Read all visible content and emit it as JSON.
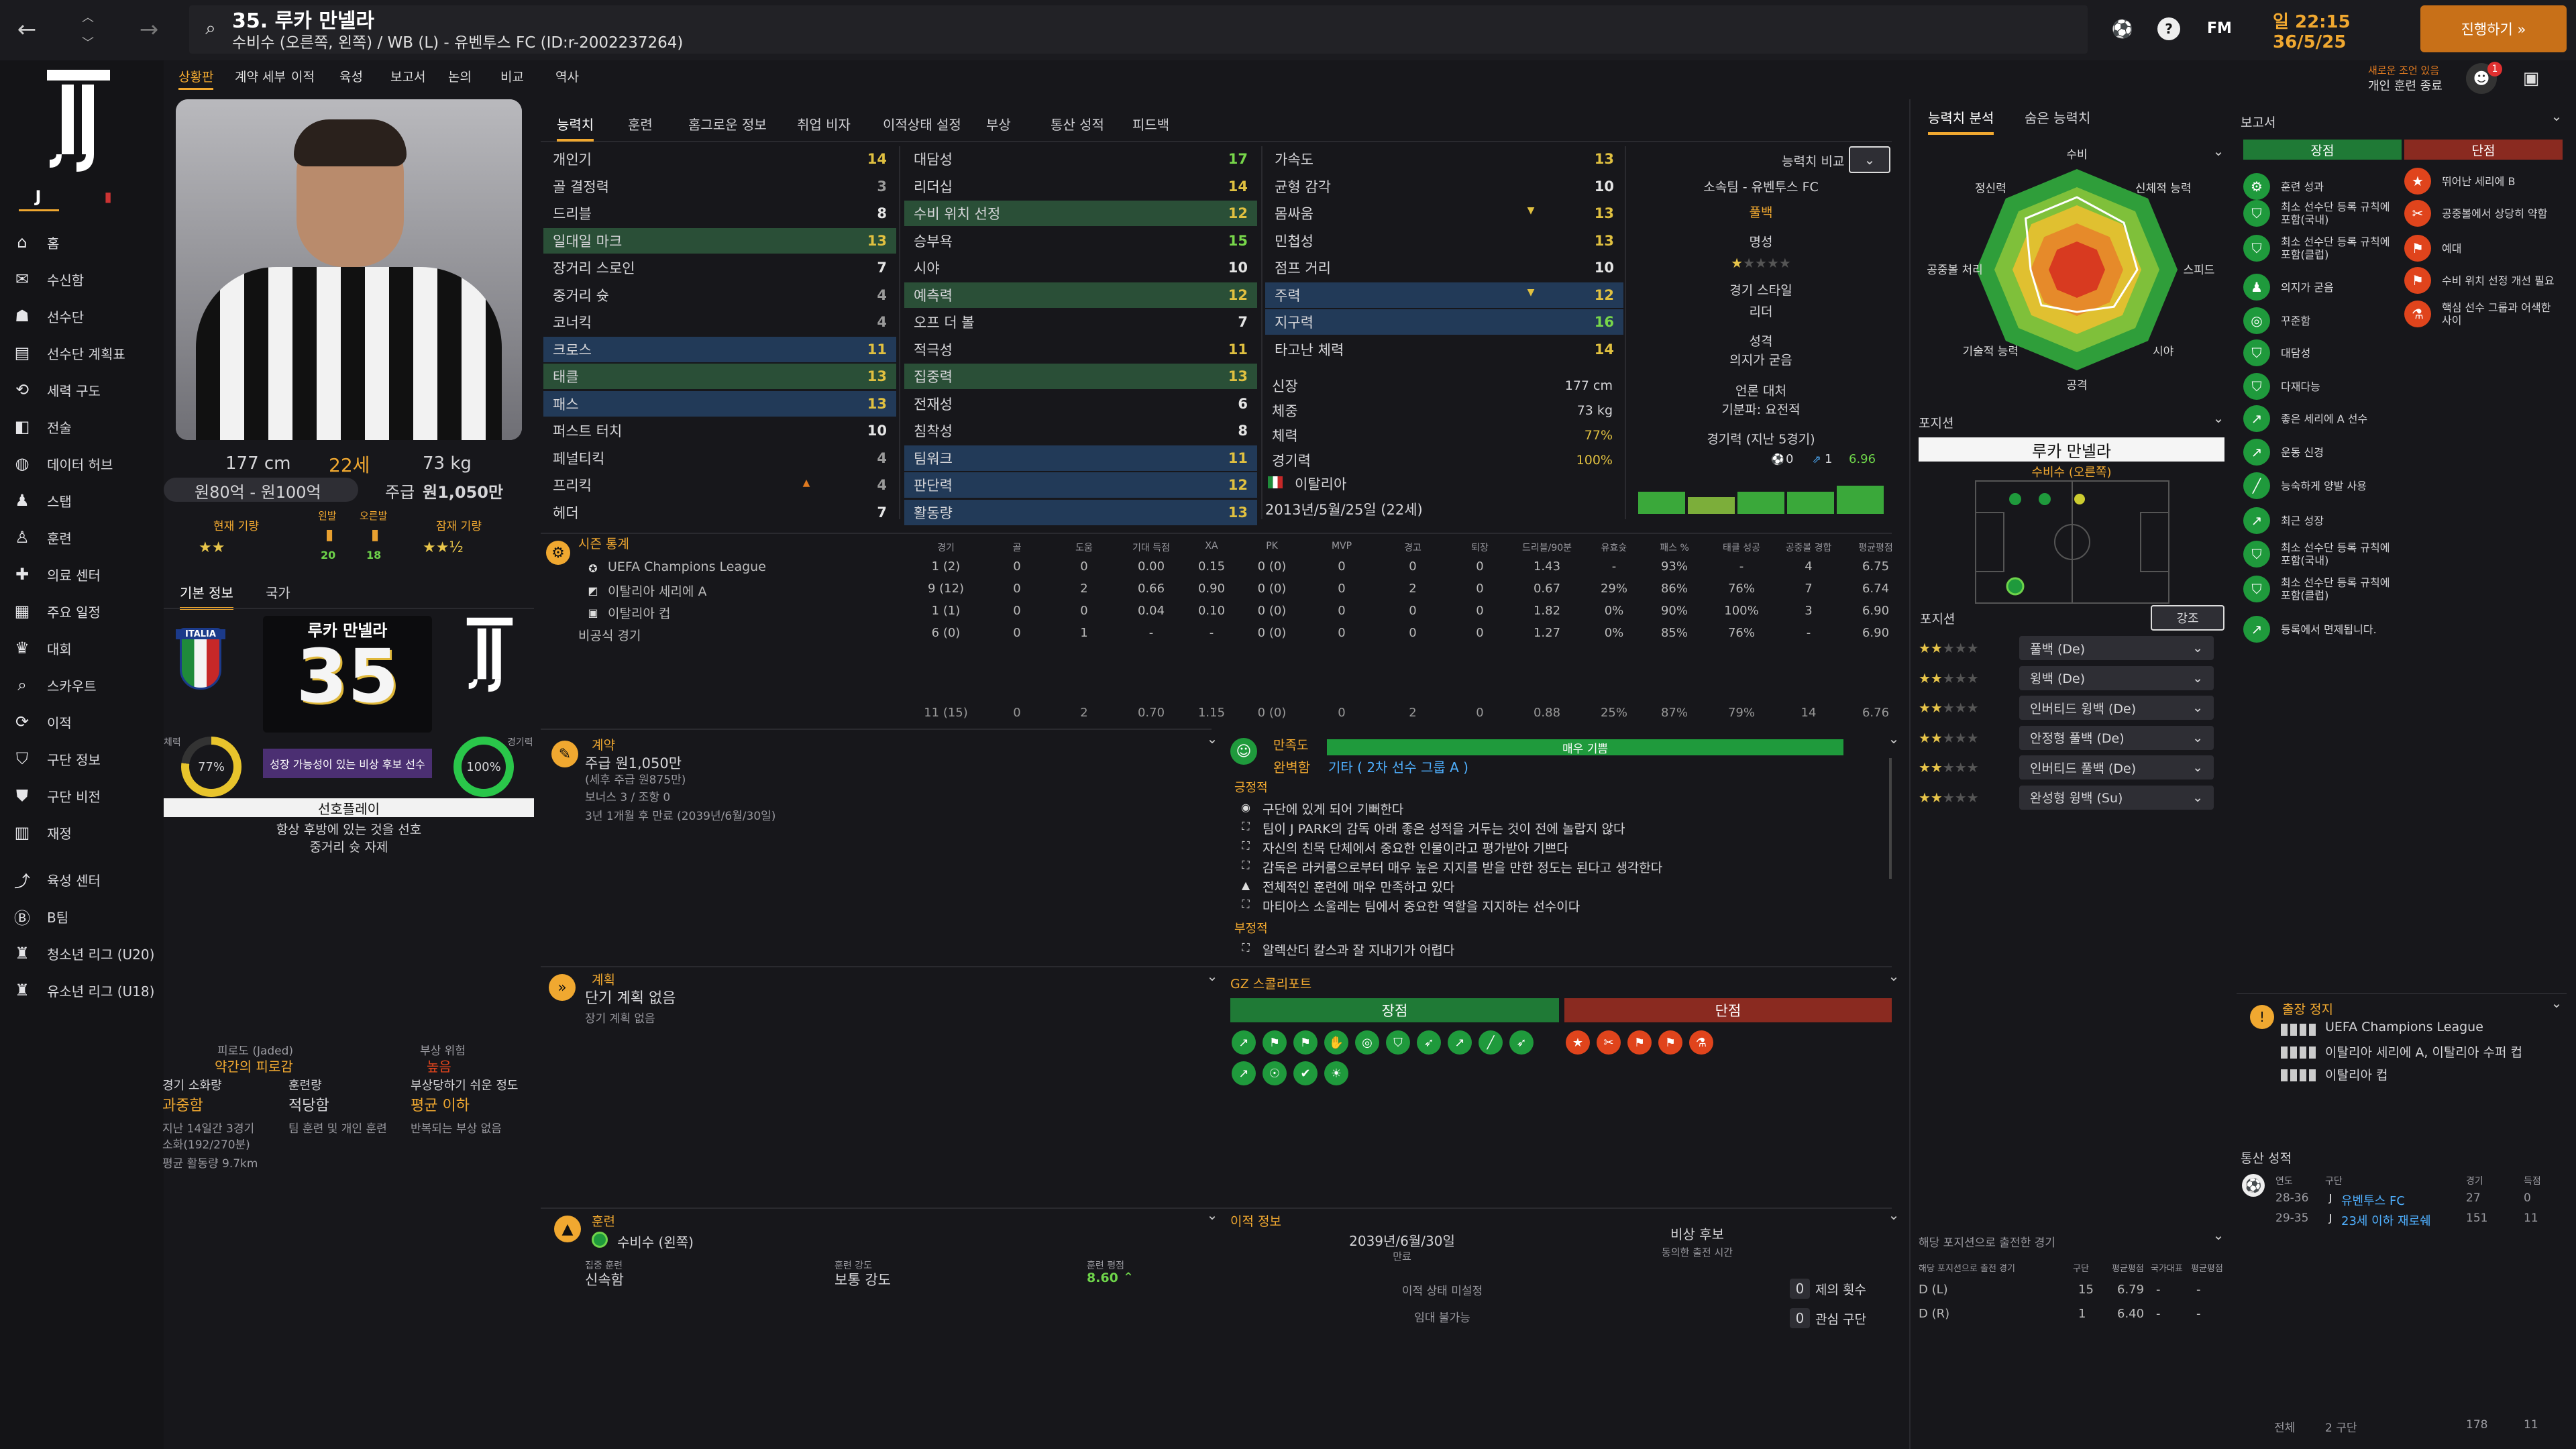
{
  "topbar": {
    "player_no_name": "35. 루카 만넬라",
    "subtitle": "수비수 (오른쪽, 왼쪽) / WB (L) - 유벤투스 FC (ID:r-2002237264)",
    "time_day": "일 22:15",
    "date": "36/5/25",
    "continue_label": "진행하기 »",
    "notice_line1": "새로운 조언 있음",
    "notice_line2": "개인 훈련 종료",
    "fm_label": "FM",
    "badge_count": "1"
  },
  "subnav": [
    "상황판",
    "계약 세부",
    "이적",
    "육성",
    "보고서",
    "논의",
    "비교",
    "역사"
  ],
  "nav": {
    "items": [
      "홈",
      "수신함",
      "선수단",
      "선수단 계획표",
      "세력 구도",
      "전술",
      "데이터 허브",
      "스탭",
      "훈련",
      "의료 센터",
      "주요 일정",
      "대회",
      "스카우트",
      "이적",
      "구단 정보",
      "구단 비전",
      "재정",
      "육성 센터",
      "B팀",
      "청소년 리그 (U20)",
      "유소년 리그 (U18)"
    ]
  },
  "profile": {
    "height": "177 cm",
    "age": "22세",
    "weight": "73 kg",
    "value": "원80억 - 원100억",
    "wage_label": "주급",
    "wage": "원1,050만",
    "current_ability": "현재 기량",
    "potential_ability": "잠재 기량",
    "left_foot": "왼발",
    "right_foot": "오른발",
    "left_foot_val": "20",
    "right_foot_val": "18",
    "ca_stars": "★★",
    "pa_stars": "★★½"
  },
  "card": {
    "tab1": "기본 정보",
    "tab2": "국가",
    "nation": "ITALIA",
    "name": "루카 만넬라",
    "number": "35",
    "tagline": "성장 가능성이 있는 비상 후보 선수",
    "fitness_label": "체력",
    "fitness_pct": "77%",
    "sharpness_label": "경기력",
    "sharpness_pct": "100%",
    "pref_title": "선호플레이",
    "pref1": "항상 후방에 있는 것을 선호",
    "pref2": "중거리 슛 자제"
  },
  "fatigue": {
    "title": "피로도 (Jaded)",
    "status": "약간의 피로감",
    "risk_title": "부상 위험",
    "risk_val": "높음",
    "c1_label": "경기 소화량",
    "c1_val": "과중함",
    "c2_label": "훈련량",
    "c2_val": "적당함",
    "c3_label": "부상당하기 쉬운 정도",
    "c3_val": "평균 이하",
    "d1": "지난 14일간 3경기",
    "d2": "소화(192/270분)",
    "d3": "평균 활동량 9.7km",
    "d4": "팀 훈련 및 개인 훈련",
    "d5": "반복되는 부상 없음"
  },
  "main_tabs": [
    "능력치",
    "훈련",
    "홈그로운 정보",
    "취업 비자",
    "이적상태 설정",
    "부상",
    "통산 성적",
    "피드백"
  ],
  "attrs_col1": [
    {
      "n": "개인기",
      "v": "14",
      "c": "y",
      "h": ""
    },
    {
      "n": "골 결정력",
      "v": "3",
      "c": "gr",
      "h": ""
    },
    {
      "n": "드리블",
      "v": "8",
      "c": "w",
      "h": ""
    },
    {
      "n": "일대일 마크",
      "v": "13",
      "c": "y",
      "h": "hl"
    },
    {
      "n": "장거리 스로인",
      "v": "7",
      "c": "w",
      "h": ""
    },
    {
      "n": "중거리 슛",
      "v": "4",
      "c": "gr",
      "h": ""
    },
    {
      "n": "코너킥",
      "v": "4",
      "c": "gr",
      "h": ""
    },
    {
      "n": "크로스",
      "v": "11",
      "c": "y",
      "h": "bl"
    },
    {
      "n": "태클",
      "v": "13",
      "c": "y",
      "h": "hl"
    },
    {
      "n": "패스",
      "v": "13",
      "c": "y",
      "h": "bl"
    },
    {
      "n": "퍼스트 터치",
      "v": "10",
      "c": "w",
      "h": ""
    },
    {
      "n": "페널티킥",
      "v": "4",
      "c": "gr",
      "h": ""
    },
    {
      "n": "프리킥",
      "v": "4",
      "c": "gr",
      "h": ""
    },
    {
      "n": "헤더",
      "v": "7",
      "c": "w",
      "h": ""
    }
  ],
  "attrs_col2": [
    {
      "n": "대담성",
      "v": "17",
      "c": "g",
      "h": ""
    },
    {
      "n": "리더십",
      "v": "14",
      "c": "y",
      "h": ""
    },
    {
      "n": "수비 위치 선정",
      "v": "12",
      "c": "y",
      "h": "hl"
    },
    {
      "n": "승부욕",
      "v": "15",
      "c": "g",
      "h": ""
    },
    {
      "n": "시야",
      "v": "10",
      "c": "w",
      "h": ""
    },
    {
      "n": "예측력",
      "v": "12",
      "c": "y",
      "h": "hl"
    },
    {
      "n": "오프 더 볼",
      "v": "7",
      "c": "w",
      "h": ""
    },
    {
      "n": "적극성",
      "v": "11",
      "c": "y",
      "h": ""
    },
    {
      "n": "집중력",
      "v": "13",
      "c": "y",
      "h": "hl"
    },
    {
      "n": "전재성",
      "v": "6",
      "c": "w",
      "h": ""
    },
    {
      "n": "침착성",
      "v": "8",
      "c": "w",
      "h": ""
    },
    {
      "n": "팀워크",
      "v": "11",
      "c": "y",
      "h": "bl"
    },
    {
      "n": "판단력",
      "v": "12",
      "c": "y",
      "h": "bl"
    },
    {
      "n": "활동량",
      "v": "13",
      "c": "y",
      "h": "bl"
    }
  ],
  "attrs_col3": [
    {
      "n": "가속도",
      "v": "13",
      "c": "y",
      "h": ""
    },
    {
      "n": "균형 감각",
      "v": "10",
      "c": "w",
      "h": ""
    },
    {
      "n": "몸싸움",
      "v": "13",
      "c": "y",
      "h": ""
    },
    {
      "n": "민첩성",
      "v": "13",
      "c": "y",
      "h": ""
    },
    {
      "n": "점프 거리",
      "v": "10",
      "c": "w",
      "h": ""
    },
    {
      "n": "주력",
      "v": "12",
      "c": "y",
      "h": "bl"
    },
    {
      "n": "지구력",
      "v": "16",
      "c": "g",
      "h": "bl"
    },
    {
      "n": "타고난 체력",
      "v": "14",
      "c": "y",
      "h": ""
    }
  ],
  "physical": [
    {
      "n": "신장",
      "v": "177 cm"
    },
    {
      "n": "체중",
      "v": "73 kg"
    },
    {
      "n": "체력",
      "v": "77%"
    },
    {
      "n": "경기력",
      "v": "100%"
    }
  ],
  "nation_line": "이탈리아",
  "birth_line": "2013년/5월/25일 (22세)",
  "compare": {
    "label": "능력치 비교",
    "club_line": "소속팀 - 유벤투스 FC",
    "role": "풀백",
    "fame": "명성",
    "play_style": "경기 스타일",
    "leader": "리더",
    "personality": "성격",
    "personality_val": "의지가 굳음",
    "media": "언론 대처",
    "media_val": "기분파: 요전적",
    "form": "경기력 (지난 5경기)",
    "goals": "0",
    "assists": "1",
    "rating": "6.96",
    "form_values": [
      6.9,
      6.8,
      6.9,
      6.9,
      7.0
    ]
  },
  "season": {
    "title": "시즌 통계",
    "headers": [
      "경기",
      "골",
      "도움",
      "기대 득점",
      "XA",
      "PK",
      "MVP",
      "경고",
      "퇴장",
      "드리블/90분",
      "유효슛",
      "패스 %",
      "태클 성공",
      "공중볼 경합",
      "평균평점"
    ],
    "rows": [
      {
        "comp": "UEFA Champions League",
        "vals": [
          "1 (2)",
          "0",
          "0",
          "0.00",
          "0.15",
          "0 (0)",
          "0",
          "0",
          "0",
          "1.43",
          "-",
          "93%",
          "-",
          "4",
          "6.75"
        ]
      },
      {
        "comp": "이탈리아 세리에 A",
        "vals": [
          "9 (12)",
          "0",
          "2",
          "0.66",
          "0.90",
          "0 (0)",
          "0",
          "2",
          "0",
          "0.67",
          "29%",
          "86%",
          "76%",
          "7",
          "6.74"
        ]
      },
      {
        "comp": "이탈리아 컵",
        "vals": [
          "1 (1)",
          "0",
          "0",
          "0.04",
          "0.10",
          "0 (0)",
          "0",
          "0",
          "0",
          "1.82",
          "0%",
          "90%",
          "100%",
          "3",
          "6.90"
        ]
      },
      {
        "comp": "비공식 경기",
        "vals": [
          "6 (0)",
          "0",
          "1",
          "-",
          "-",
          "0 (0)",
          "0",
          "0",
          "0",
          "1.27",
          "0%",
          "85%",
          "76%",
          "-",
          "6.90"
        ]
      }
    ],
    "total": [
      "11 (15)",
      "0",
      "2",
      "0.70",
      "1.15",
      "0 (0)",
      "0",
      "2",
      "0",
      "0.88",
      "25%",
      "87%",
      "79%",
      "14",
      "6.76"
    ]
  },
  "contract": {
    "title": "계약",
    "wage": "주급 원1,050만",
    "note": "(세후 주급 원875만)",
    "bonus": "보너스 3 / 조항 0",
    "expiry": "3년 1개월 후 만료 (2039년/6월/30일)"
  },
  "satisfaction": {
    "title": "만족도",
    "level": "매우 기쁨",
    "role": "완벽함",
    "group": "기타 ( 2차 선수 그룹 A )",
    "pos_title": "긍정적",
    "pos": [
      "구단에 있게 되어 기뻐한다",
      "팀이 J PARK의 감독 아래 좋은 성적을 거두는 것이 전에 놀랍지 않다",
      "자신의 친목 단체에서 중요한 인물이라고 평가받아 기쁘다",
      "감독은 라커룸으로부터 매우 높은 지지를 받을 만한 정도는 된다고 생각한다",
      "전체적인 훈련에 매우 만족하고 있다",
      "마티아스 소울레는 팀에서 중요한 역할을 지지하는 선수이다"
    ],
    "neg_title": "부정적",
    "neg": [
      "알렉산더 칼스과 잘 지내기가 어렵다"
    ]
  },
  "plan": {
    "title": "계획",
    "short": "단기 계획 없음",
    "long": "장기 계획 없음"
  },
  "scout": {
    "title": "GZ 스콜리포트",
    "strength": "장점",
    "weakness": "단점"
  },
  "training": {
    "title": "훈련",
    "focus": "수비수 (왼쪽)",
    "i1_label": "집중 훈련",
    "i1_val": "신속함",
    "i2_label": "훈련 강도",
    "i2_val": "보통 강도",
    "i3_label": "훈련 평점",
    "i3_val": "8.60"
  },
  "transfer": {
    "title": "이적 정보",
    "date": "2039년/6월/30일",
    "date_label": "만료",
    "status": "비상 후보",
    "status_label": "동의한 출전 시간",
    "line1": "이적 상태 미설정",
    "line2": "임대 불가능",
    "offers": "제의 횟수",
    "offers_val": "0",
    "interest": "관심 구단",
    "interest_val": "0"
  },
  "right_tabs": [
    "능력치 분석",
    "숨은 능력치"
  ],
  "radar": {
    "labels": [
      "수비",
      "신체적 능력",
      "스피드",
      "시야",
      "공격",
      "기술적 능력",
      "공중볼 처리",
      "정신력"
    ],
    "values": [
      0.72,
      0.66,
      0.6,
      0.52,
      0.42,
      0.5,
      0.46,
      0.72
    ]
  },
  "position": {
    "title": "포지션",
    "name": "루카 만넬라",
    "role": "수비수 (오른쪽)",
    "section": "포지션",
    "highlight": "강조",
    "roles": [
      {
        "stars": "★★",
        "label": "풀백 (De)"
      },
      {
        "stars": "★★",
        "label": "윙백 (De)"
      },
      {
        "stars": "★★",
        "label": "인버티드 윙백 (De)"
      },
      {
        "stars": "★★",
        "label": "안정형 풀백 (De)"
      },
      {
        "stars": "★★",
        "label": "인버티드 풀백 (De)"
      },
      {
        "stars": "★★",
        "label": "완성형 윙백 (Su)"
      }
    ]
  },
  "pos_apps": {
    "title": "해당 포지션으로 출전한 경기",
    "headers": [
      "해당 포지션으로 출전 경기",
      "구단",
      "평균평점",
      "국가대표",
      "평균평점"
    ],
    "rows": [
      {
        "p": "D (L)",
        "a": "15",
        "r": "6.79",
        "n": "-",
        "nr": "-"
      },
      {
        "p": "D (R)",
        "a": "1",
        "r": "6.40",
        "n": "-",
        "nr": "-"
      }
    ]
  },
  "report": {
    "title": "보고서",
    "strength": "장점",
    "weakness": "단점",
    "pros": [
      "훈련 성과",
      "최소 선수단 등록 규칙에 포함(국내)",
      "최소 선수단 등록 규칙에 포함(클럽)",
      "의지가 굳음",
      "꾸준함",
      "대담성",
      "다재다능",
      "좋은 세리에 A 선수",
      "운동 신경",
      "능숙하게 양발 사용",
      "최근 성장",
      "최소 선수단 등록 규칙에 포함(국내)",
      "최소 선수단 등록 규칙에 포함(클럽)",
      "등록에서 면제됩니다."
    ],
    "cons": [
      "뛰어난 세리에 B",
      "공중볼에서 상당히 약함",
      "예대",
      "수비 위치 선정 개선 필요",
      "핵심 선수 그룹과 어색한 사이"
    ]
  },
  "suspension": {
    "title": "출장 정지",
    "items": [
      "UEFA Champions League",
      "이탈리아 세리에 A, 이탈리아 수퍼 컵",
      "이탈리아 컵"
    ]
  },
  "career": {
    "title": "통산 성적",
    "headers": [
      "연도",
      "구단",
      "경기",
      "득점"
    ],
    "rows": [
      {
        "y": "28-36",
        "c": "유벤투스 FC",
        "a": "27",
        "g": "0"
      },
      {
        "y": "29-35",
        "c": "23세 이하 재로쉐",
        "a": "151",
        "g": "11"
      }
    ],
    "total_label": "전체",
    "total_clubs": "2 구단",
    "total_apps": "178",
    "total_goals": "11"
  },
  "colors": {
    "accent": "#f0a830",
    "good": "#1f9a3c",
    "bad": "#e0441c",
    "hl_green": "#2a4f37",
    "hl_blue": "#223a58"
  }
}
